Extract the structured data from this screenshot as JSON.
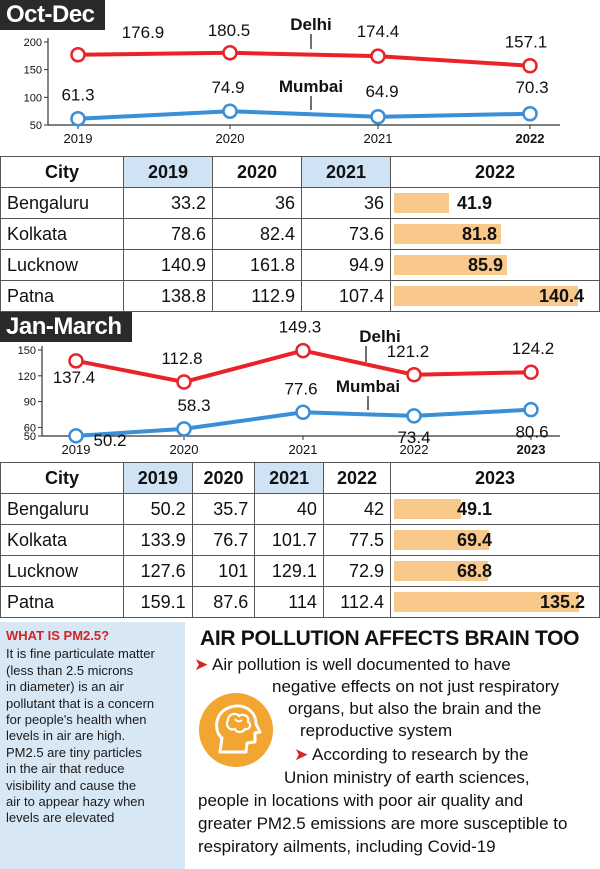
{
  "section1": {
    "title": "Oct-Dec"
  },
  "section2": {
    "title": "Jan-March"
  },
  "chart_data": [
    {
      "type": "line",
      "title": "Oct-Dec",
      "x": [
        "2019",
        "2020",
        "2021",
        "2022"
      ],
      "ylim": [
        50,
        200
      ],
      "yticks": [
        200,
        150,
        100,
        50
      ],
      "series": [
        {
          "name": "Delhi",
          "values": [
            176.9,
            180.5,
            174.4,
            157.1
          ],
          "color": "#e8242a"
        },
        {
          "name": "Mumbai",
          "values": [
            61.3,
            74.9,
            64.9,
            70.3
          ],
          "color": "#3a8fd6"
        }
      ]
    },
    {
      "type": "line",
      "title": "Jan-March",
      "x": [
        "2019",
        "2020",
        "2021",
        "2022",
        "2023"
      ],
      "ylim": [
        50,
        150
      ],
      "yticks": [
        150,
        120,
        90,
        60,
        50
      ],
      "series": [
        {
          "name": "Delhi",
          "values": [
            137.4,
            112.8,
            149.3,
            121.2,
            124.2
          ],
          "color": "#e8242a"
        },
        {
          "name": "Mumbai",
          "values": [
            50.2,
            58.3,
            77.6,
            73.4,
            80.6
          ],
          "color": "#3a8fd6"
        }
      ]
    },
    {
      "type": "table",
      "title": "Oct-Dec",
      "columns": [
        "City",
        "2019",
        "2020",
        "2021",
        "2022"
      ],
      "rows": [
        [
          "Bengaluru",
          "33.2",
          "36",
          "36",
          "41.9"
        ],
        [
          "Kolkata",
          "78.6",
          "82.4",
          "73.6",
          "81.8"
        ],
        [
          "Lucknow",
          "140.9",
          "161.8",
          "94.9",
          "85.9"
        ],
        [
          "Patna",
          "138.8",
          "112.9",
          "107.4",
          "140.4"
        ]
      ]
    },
    {
      "type": "table",
      "title": "Jan-March",
      "columns": [
        "City",
        "2019",
        "2020",
        "2021",
        "2022",
        "2023"
      ],
      "rows": [
        [
          "Bengaluru",
          "50.2",
          "35.7",
          "40",
          "42",
          "49.1"
        ],
        [
          "Kolkata",
          "133.9",
          "76.7",
          "101.7",
          "77.5",
          "69.4"
        ],
        [
          "Lucknow",
          "127.6",
          "101",
          "129.1",
          "72.9",
          "68.8"
        ],
        [
          "Patna",
          "159.1",
          "87.6",
          "114",
          "112.4",
          "135.2"
        ]
      ]
    }
  ],
  "colors": {
    "bar": "#f8c98a",
    "header_highlight": "#cfe3f4",
    "info_box": "#d8e7f4",
    "accent": "#d42424",
    "brain_icon": "#f2a531"
  },
  "pm_box": {
    "question": "WHAT IS PM2.5?",
    "lines": [
      "It is fine particulate matter",
      "(less than 2.5 microns",
      "in diameter) is an air",
      "pollutant that is a concern",
      "for people's health when",
      "levels in air are high.",
      "PM2.5 are tiny particles",
      "in the air that reduce",
      "visibility and cause the",
      "air to appear hazy when",
      "levels are elevated"
    ]
  },
  "brain": {
    "heading": "AIR POLLUTION AFFECTS BRAIN TOO",
    "lines": [
      "Air pollution is well documented to have",
      "negative effects on not just respiratory",
      "organs, but also the brain and the",
      "reproductive system",
      "According to research by the",
      "Union ministry of earth sciences,",
      "people in locations with poor air quality and",
      "greater PM2.5 emissions are more susceptible to",
      "respiratory ailments, including Covid-19"
    ],
    "icon": "brain-head-icon"
  }
}
